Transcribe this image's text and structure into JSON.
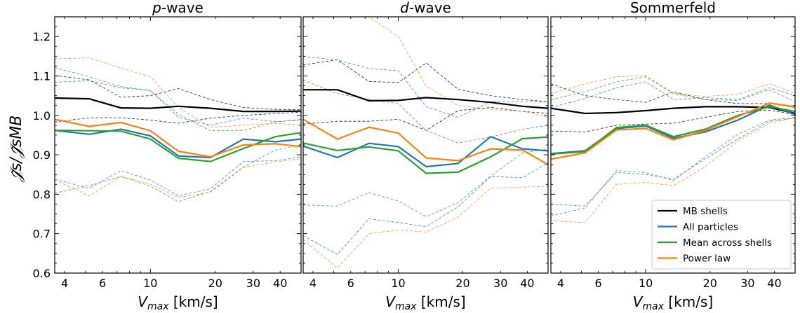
{
  "figure": {
    "ylabel": "𝒥̃s/𝒥̃sMB",
    "xlabel": "Vmax [km/s]"
  },
  "chart_data": [
    {
      "type": "line",
      "title": "p-wave",
      "xlabel": "Vmax [km/s]",
      "ylabel": "𝒥̃s/𝒥̃sMB",
      "xscale": "log",
      "xlim": [
        3.6,
        50
      ],
      "ylim": [
        0.6,
        1.25
      ],
      "xticks": [
        4,
        6,
        10,
        20,
        30,
        40
      ],
      "yticks": [
        0.6,
        0.7,
        0.8,
        0.9,
        1.0,
        1.1,
        1.2
      ],
      "x": [
        3.6,
        5.2,
        7.3,
        10.0,
        13.5,
        19.0,
        27.0,
        38.0,
        50.0
      ],
      "series": [
        {
          "name": "MB shells",
          "color": "#000000",
          "style": "solid",
          "values": [
            1.044,
            1.042,
            1.019,
            1.018,
            1.023,
            1.018,
            1.01,
            1.01,
            1.011
          ]
        },
        {
          "color": "#000000",
          "style": "dashed",
          "values": [
            1.101,
            1.09,
            1.046,
            1.05,
            1.068,
            1.04,
            1.02,
            1.015,
            1.015
          ]
        },
        {
          "color": "#000000",
          "style": "dashed",
          "values": [
            0.983,
            0.994,
            0.994,
            0.988,
            0.98,
            0.993,
            1.0,
            1.005,
            1.008
          ]
        },
        {
          "name": "All particles",
          "color": "#1f77b4",
          "style": "solid",
          "values": [
            0.962,
            0.952,
            0.965,
            0.948,
            0.897,
            0.893,
            0.94,
            0.933,
            0.94
          ]
        },
        {
          "color": "#1f77b4",
          "style": "dashed",
          "values": [
            1.084,
            1.088,
            1.07,
            1.063,
            0.995,
            0.975,
            0.993,
            0.984,
            0.988
          ]
        },
        {
          "color": "#1f77b4",
          "style": "dashed",
          "values": [
            0.838,
            0.815,
            0.86,
            0.836,
            0.796,
            0.814,
            0.883,
            0.885,
            0.895
          ]
        },
        {
          "name": "Mean across shells",
          "color": "#2ca02c",
          "style": "solid",
          "values": [
            0.962,
            0.961,
            0.96,
            0.94,
            0.891,
            0.883,
            0.916,
            0.946,
            0.956
          ]
        },
        {
          "color": "#2ca02c",
          "style": "dashed",
          "values": [
            1.121,
            1.098,
            1.073,
            1.063,
            1.003,
            0.961,
            0.962,
            0.983,
            0.99
          ]
        },
        {
          "color": "#2ca02c",
          "style": "dashed",
          "values": [
            0.803,
            0.822,
            0.845,
            0.821,
            0.781,
            0.807,
            0.869,
            0.912,
            0.925
          ]
        },
        {
          "name": "Power law",
          "color": "#ff7f0e",
          "style": "solid",
          "values": [
            0.99,
            0.972,
            0.982,
            0.961,
            0.909,
            0.895,
            0.925,
            0.928,
            0.921
          ]
        },
        {
          "color": "#ff7f0e",
          "style": "dashed",
          "values": [
            1.143,
            1.146,
            1.12,
            1.098,
            1.02,
            0.97,
            0.975,
            0.98,
            0.975
          ]
        },
        {
          "color": "#ff7f0e",
          "style": "dashed",
          "values": [
            0.836,
            0.796,
            0.845,
            0.826,
            0.792,
            0.805,
            0.868,
            0.882,
            0.89
          ]
        }
      ]
    },
    {
      "type": "line",
      "title": "d-wave",
      "xlabel": "Vmax [km/s]",
      "ylabel": "",
      "xscale": "log",
      "xlim": [
        3.6,
        50
      ],
      "ylim": [
        0.6,
        1.25
      ],
      "xticks": [
        4,
        6,
        10,
        20,
        30,
        40
      ],
      "yticks": [
        0.6,
        0.7,
        0.8,
        0.9,
        1.0,
        1.1,
        1.2
      ],
      "x": [
        3.6,
        5.2,
        7.3,
        10.0,
        13.5,
        19.0,
        27.0,
        38.0,
        50.0
      ],
      "series": [
        {
          "name": "MB shells",
          "color": "#000000",
          "style": "solid",
          "values": [
            1.065,
            1.065,
            1.037,
            1.038,
            1.045,
            1.04,
            1.033,
            1.023,
            1.018
          ]
        },
        {
          "color": "#000000",
          "style": "dashed",
          "values": [
            1.128,
            1.141,
            1.086,
            1.083,
            1.133,
            1.066,
            1.05,
            1.04,
            1.035
          ]
        },
        {
          "color": "#000000",
          "style": "dashed",
          "values": [
            0.978,
            0.985,
            0.985,
            0.99,
            0.962,
            1.012,
            1.02,
            1.01,
            1.005
          ]
        },
        {
          "name": "All particles",
          "color": "#1f77b4",
          "style": "solid",
          "values": [
            0.922,
            0.893,
            0.929,
            0.921,
            0.87,
            0.878,
            0.946,
            0.915,
            0.91
          ]
        },
        {
          "color": "#1f77b4",
          "style": "dashed",
          "values": [
            1.15,
            1.14,
            1.119,
            1.113,
            1.022,
            0.995,
            1.035,
            1.035,
            1.035
          ]
        },
        {
          "color": "#1f77b4",
          "style": "dashed",
          "values": [
            0.695,
            0.647,
            0.738,
            0.728,
            0.718,
            0.768,
            0.845,
            0.842,
            0.88
          ]
        },
        {
          "name": "Mean across shells",
          "color": "#2ca02c",
          "style": "solid",
          "values": [
            0.93,
            0.911,
            0.92,
            0.91,
            0.853,
            0.856,
            0.895,
            0.941,
            0.945
          ]
        },
        {
          "color": "#2ca02c",
          "style": "dashed",
          "values": [
            1.09,
            1.055,
            1.04,
            1.03,
            0.962,
            0.93,
            0.945,
            0.965,
            0.975
          ]
        },
        {
          "color": "#2ca02c",
          "style": "dashed",
          "values": [
            0.773,
            0.77,
            0.804,
            0.783,
            0.743,
            0.779,
            0.846,
            0.905,
            0.915
          ]
        },
        {
          "name": "Power law",
          "color": "#ff7f0e",
          "style": "solid",
          "values": [
            0.99,
            0.94,
            0.97,
            0.955,
            0.892,
            0.885,
            0.915,
            0.912,
            0.875
          ]
        },
        {
          "color": "#ff7f0e",
          "style": "dashed",
          "values": [
            1.25,
            1.25,
            1.25,
            1.2,
            1.075,
            1.025,
            1.015,
            1.01,
            0.995
          ]
        },
        {
          "color": "#ff7f0e",
          "style": "dashed",
          "values": [
            0.685,
            0.613,
            0.7,
            0.709,
            0.704,
            0.742,
            0.815,
            0.818,
            0.82
          ]
        }
      ]
    },
    {
      "type": "line",
      "title": "Sommerfeld",
      "xlabel": "Vmax [km/s]",
      "ylabel": "",
      "xscale": "log",
      "xlim": [
        3.6,
        50
      ],
      "ylim": [
        0.6,
        1.25
      ],
      "xticks": [
        4,
        6,
        10,
        20,
        30,
        40
      ],
      "yticks": [
        0.6,
        0.7,
        0.8,
        0.9,
        1.0,
        1.1,
        1.2
      ],
      "legend": {
        "position": "bottom-right",
        "entries": [
          "MB shells",
          "All particles",
          "Mean across shells",
          "Power law"
        ]
      },
      "x": [
        3.6,
        5.2,
        7.3,
        10.0,
        13.5,
        19.0,
        27.0,
        38.0,
        50.0
      ],
      "series": [
        {
          "name": "MB shells",
          "color": "#000000",
          "style": "solid",
          "values": [
            1.018,
            1.005,
            1.007,
            1.012,
            1.018,
            1.022,
            1.022,
            1.02,
            1.005
          ]
        },
        {
          "color": "#000000",
          "style": "dashed",
          "values": [
            1.08,
            1.05,
            1.04,
            1.033,
            1.06,
            1.04,
            1.03,
            1.03,
            1.02
          ]
        },
        {
          "color": "#000000",
          "style": "dashed",
          "values": [
            0.96,
            0.958,
            0.975,
            0.978,
            0.98,
            0.995,
            1.01,
            1.013,
            1.002
          ]
        },
        {
          "name": "All particles",
          "color": "#1f77b4",
          "style": "solid",
          "values": [
            0.903,
            0.91,
            0.967,
            0.973,
            0.942,
            0.958,
            0.988,
            1.026,
            1.002
          ]
        },
        {
          "color": "#1f77b4",
          "style": "dashed",
          "values": [
            1.02,
            1.043,
            1.07,
            1.085,
            1.04,
            1.045,
            1.04,
            1.07,
            1.05
          ]
        },
        {
          "color": "#1f77b4",
          "style": "dashed",
          "values": [
            0.775,
            0.77,
            0.855,
            0.85,
            0.838,
            0.89,
            0.94,
            0.985,
            0.993
          ]
        },
        {
          "name": "Mean across shells",
          "color": "#2ca02c",
          "style": "solid",
          "values": [
            0.902,
            0.908,
            0.969,
            0.975,
            0.946,
            0.965,
            1.0,
            1.022,
            1.01
          ]
        },
        {
          "color": "#2ca02c",
          "style": "dashed",
          "values": [
            1.04,
            1.06,
            1.085,
            1.098,
            1.055,
            1.04,
            1.038,
            1.065,
            1.035
          ]
        },
        {
          "color": "#2ca02c",
          "style": "dashed",
          "values": [
            0.745,
            0.765,
            0.86,
            0.855,
            0.835,
            0.895,
            0.952,
            0.988,
            0.995
          ]
        },
        {
          "name": "Power law",
          "color": "#ff7f0e",
          "style": "solid",
          "values": [
            0.889,
            0.905,
            0.963,
            0.967,
            0.938,
            0.962,
            0.997,
            1.031,
            1.022
          ]
        },
        {
          "color": "#ff7f0e",
          "style": "dashed",
          "values": [
            1.055,
            1.08,
            1.098,
            1.101,
            1.056,
            1.048,
            1.053,
            1.08,
            1.056
          ]
        },
        {
          "color": "#ff7f0e",
          "style": "dashed",
          "values": [
            0.733,
            0.728,
            0.825,
            0.83,
            0.822,
            0.87,
            0.935,
            0.98,
            0.995
          ]
        }
      ]
    }
  ]
}
